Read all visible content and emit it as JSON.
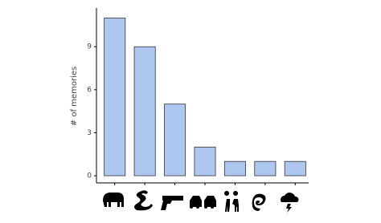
{
  "chart_data": {
    "type": "bar",
    "y_label": "# of memories",
    "categories": [
      null,
      null,
      null,
      null,
      null,
      null,
      null
    ],
    "values": [
      11,
      9,
      5,
      2,
      1,
      1,
      1
    ],
    "color": "#aec7f0",
    "edge_color": "#333333",
    "ylim": [
      -0.5,
      11.7
    ],
    "yticks": [
      0,
      3,
      6,
      9
    ],
    "grid": false
  }
}
